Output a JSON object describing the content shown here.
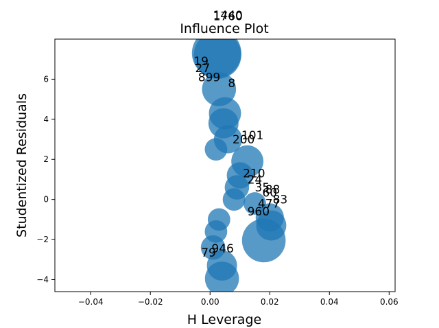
{
  "chart_data": {
    "type": "scatter",
    "title": "Influence Plot",
    "xlabel": "H Leverage",
    "ylabel": "Studentized Residuals",
    "xlim": [
      -0.052,
      0.062
    ],
    "ylim": [
      -4.6,
      8.0
    ],
    "xticks": [
      "−0.04",
      "−0.02",
      "0.00",
      "0.02",
      "0.04",
      "0.06"
    ],
    "xtick_values": [
      -0.04,
      -0.02,
      0.0,
      0.02,
      0.04,
      0.06
    ],
    "yticks": [
      "−4",
      "−2",
      "0",
      "2",
      "4",
      "6"
    ],
    "ytick_values": [
      -4,
      -2,
      0,
      2,
      4,
      6
    ],
    "grid": false,
    "marker_color": "#1f77b4",
    "points": [
      {
        "x": 0.0022,
        "y": 7.3,
        "size": 1.0
      },
      {
        "x": 0.0025,
        "y": 7.2,
        "size": 0.95
      },
      {
        "x": 0.003,
        "y": 5.5,
        "size": 0.6
      },
      {
        "x": 0.005,
        "y": 4.3,
        "size": 0.55
      },
      {
        "x": 0.0045,
        "y": 3.8,
        "size": 0.5
      },
      {
        "x": 0.006,
        "y": 3.0,
        "size": 0.45
      },
      {
        "x": 0.0125,
        "y": 1.9,
        "size": 0.55
      },
      {
        "x": 0.01,
        "y": 1.2,
        "size": 0.4
      },
      {
        "x": 0.009,
        "y": 0.6,
        "size": 0.35
      },
      {
        "x": 0.008,
        "y": 0.0,
        "size": 0.3
      },
      {
        "x": 0.015,
        "y": -0.2,
        "size": 0.3
      },
      {
        "x": 0.02,
        "y": -0.9,
        "size": 0.45
      },
      {
        "x": 0.0205,
        "y": -1.3,
        "size": 0.5
      },
      {
        "x": 0.018,
        "y": -2.05,
        "size": 0.85
      },
      {
        "x": 0.004,
        "y": -3.3,
        "size": 0.5
      },
      {
        "x": 0.004,
        "y": -3.95,
        "size": 0.6
      },
      {
        "x": 0.001,
        "y": -2.4,
        "size": 0.35
      },
      {
        "x": 0.002,
        "y": -1.6,
        "size": 0.3
      },
      {
        "x": 0.003,
        "y": -1.0,
        "size": 0.3
      },
      {
        "x": 0.002,
        "y": 2.5,
        "size": 0.3
      }
    ],
    "annotations": [
      {
        "text": "1440",
        "x": 0.001,
        "y": 9.0
      },
      {
        "text": "1760",
        "x": 0.001,
        "y": 8.95
      },
      {
        "text": "19",
        "x": -0.0055,
        "y": 6.7
      },
      {
        "text": "27",
        "x": -0.005,
        "y": 6.35
      },
      {
        "text": "899",
        "x": -0.004,
        "y": 5.9
      },
      {
        "text": "8",
        "x": 0.006,
        "y": 5.6
      },
      {
        "text": "101",
        "x": 0.0105,
        "y": 3.0
      },
      {
        "text": "200",
        "x": 0.0075,
        "y": 2.8
      },
      {
        "text": "210",
        "x": 0.011,
        "y": 1.1
      },
      {
        "text": "24",
        "x": 0.0125,
        "y": 0.8
      },
      {
        "text": "35",
        "x": 0.015,
        "y": 0.4
      },
      {
        "text": "88",
        "x": 0.0185,
        "y": 0.3
      },
      {
        "text": "60",
        "x": 0.0175,
        "y": 0.15
      },
      {
        "text": "83",
        "x": 0.021,
        "y": -0.2
      },
      {
        "text": "477",
        "x": 0.016,
        "y": -0.4
      },
      {
        "text": "960",
        "x": 0.0125,
        "y": -0.8
      },
      {
        "text": "79",
        "x": -0.003,
        "y": -2.85
      },
      {
        "text": "946",
        "x": 0.0005,
        "y": -2.65
      }
    ]
  }
}
